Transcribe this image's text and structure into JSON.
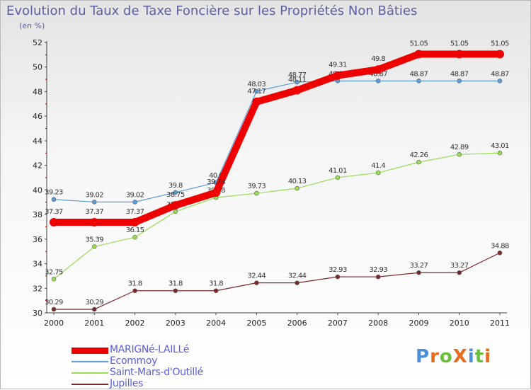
{
  "chart_data": {
    "type": "line",
    "title": "Evolution du Taux de Taxe Foncière sur les Propriétés Non Bâties",
    "subtitle": "(en %)",
    "xlabel": "",
    "ylabel": "",
    "categories": [
      "2000",
      "2001",
      "2002",
      "2003",
      "2004",
      "2005",
      "2006",
      "2007",
      "2008",
      "2009",
      "2010",
      "2011"
    ],
    "ylim": [
      30,
      52
    ],
    "yticks": [
      "30",
      "32",
      "34",
      "36",
      "38",
      "40",
      "42",
      "44",
      "46",
      "48",
      "50",
      "52"
    ],
    "ytick_values": [
      30,
      32,
      34,
      36,
      38,
      40,
      42,
      44,
      46,
      48,
      50,
      52
    ],
    "series": [
      {
        "name": "Ecommoy",
        "color": "#5b9bd5",
        "width": 1.2,
        "values": [
          39.23,
          39.02,
          39.02,
          39.8,
          40.6,
          48.03,
          48.77,
          48.87,
          48.87,
          48.87,
          48.87,
          48.87
        ],
        "labels": [
          "39.23",
          "39.02",
          "39.02",
          "39.8",
          "40.6",
          "48.03",
          "48.77",
          "48.87",
          "48.87",
          "48.87",
          "48.87",
          "48.87"
        ]
      },
      {
        "name": "Saint-Mars-d'Outillé",
        "color": "#99dd55",
        "width": 1.2,
        "values": [
          32.75,
          35.39,
          36.15,
          38.24,
          39.38,
          39.73,
          40.13,
          41.01,
          41.4,
          42.26,
          42.89,
          43.01
        ],
        "labels": [
          "32.75",
          "35.39",
          "36.15",
          "38.24",
          "39.38",
          "39.73",
          "40.13",
          "41.01",
          "41.4",
          "42.26",
          "42.89",
          "43.01"
        ]
      },
      {
        "name": "Jupilles",
        "color": "#7a2a2a",
        "width": 1.2,
        "values": [
          30.29,
          30.29,
          31.8,
          31.8,
          31.8,
          32.44,
          32.44,
          32.93,
          32.93,
          33.27,
          33.27,
          34.88
        ],
        "labels": [
          "30.29",
          "30.29",
          "31.8",
          "31.8",
          "31.8",
          "32.44",
          "32.44",
          "32.93",
          "32.93",
          "33.27",
          "33.27",
          "34.88"
        ]
      },
      {
        "name": "MARIGNé-LAILLé",
        "color": "#ee0000",
        "width": 10,
        "values": [
          37.37,
          37.37,
          37.37,
          38.75,
          39.78,
          47.17,
          48.11,
          49.31,
          49.8,
          51.05,
          51.05,
          51.05
        ],
        "labels": [
          "37.37",
          "37.37",
          "37.37",
          "38.75",
          "39.78",
          "47.17",
          "48.11",
          "49.31",
          "49.8",
          "51.05",
          "51.05",
          "51.05"
        ]
      }
    ],
    "legend_order": [
      "MARIGNé-LAILLé",
      "Ecommoy",
      "Saint-Mars-d'Outillé",
      "Jupilles"
    ],
    "legend_position": "bottom-left",
    "grid": false
  },
  "branding": {
    "logo_text": "ProXiti",
    "logo_colors": [
      "#4a90d9",
      "#e86a1a",
      "#6abf3a",
      "#e86a1a",
      "#4a90d9",
      "#6abf3a",
      "#e86a1a"
    ]
  }
}
